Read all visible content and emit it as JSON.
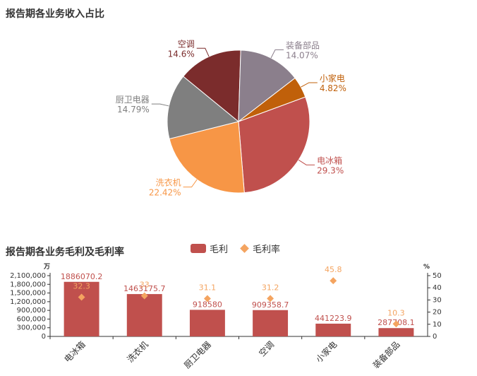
{
  "pie_title": "报告期各业务收入占比",
  "bar_title": "报告期各业务毛利及毛利率",
  "left_unit": "万",
  "right_unit": "%",
  "colors": {
    "电冰箱": "#c0504d",
    "洗衣机": "#f79646",
    "厨卫电器": "#7f7f7f",
    "空调": "#7b2c2c",
    "装备部品": "#8b7f8c",
    "小家电": "#c0600a",
    "bar": "#c0504d",
    "rate": "#f4a460"
  },
  "chart_data": [
    {
      "type": "pie",
      "title": "报告期各业务收入占比",
      "slices": [
        {
          "label": "电冰箱",
          "value": 29.3,
          "pct": "29.3%"
        },
        {
          "label": "洗衣机",
          "value": 22.42,
          "pct": "22.42%"
        },
        {
          "label": "厨卫电器",
          "value": 14.79,
          "pct": "14.79%"
        },
        {
          "label": "空调",
          "value": 14.6,
          "pct": "14.6%"
        },
        {
          "label": "装备部品",
          "value": 14.07,
          "pct": "14.07%"
        },
        {
          "label": "小家电",
          "value": 4.82,
          "pct": "4.82%"
        }
      ]
    },
    {
      "type": "bar",
      "title": "报告期各业务毛利及毛利率",
      "categories": [
        "电冰箱",
        "洗衣机",
        "厨卫电器",
        "空调",
        "小家电",
        "装备部品"
      ],
      "series": [
        {
          "name": "毛利",
          "type": "bar",
          "values": [
            1886070.2,
            1463175.7,
            918580,
            909358.7,
            441223.9,
            287708.1
          ],
          "labels": [
            "1886070.2",
            "1463175.7",
            "918580",
            "909358.7",
            "441223.9",
            "287708.1"
          ]
        },
        {
          "name": "毛利率",
          "type": "scatter",
          "values": [
            32.3,
            33.4,
            31.1,
            31.2,
            45.8,
            10.3
          ],
          "labels": [
            "32.3",
            "33",
            "31.1",
            "31.2",
            "45.8",
            "10.3"
          ]
        }
      ],
      "y_left": {
        "min": 0,
        "max": 2100000,
        "ticks": [
          0,
          300000,
          600000,
          900000,
          1200000,
          1500000,
          1800000,
          2100000
        ],
        "tick_labels": [
          "0",
          "300,000",
          "600,000",
          "900,000",
          "1,200,000",
          "1,500,000",
          "1,800,000",
          "2,100,000"
        ]
      },
      "y_right": {
        "min": 0,
        "max": 50,
        "ticks": [
          0,
          10,
          20,
          30,
          40,
          50
        ],
        "tick_labels": [
          "0",
          "10",
          "20",
          "30",
          "40",
          "50"
        ]
      }
    }
  ]
}
